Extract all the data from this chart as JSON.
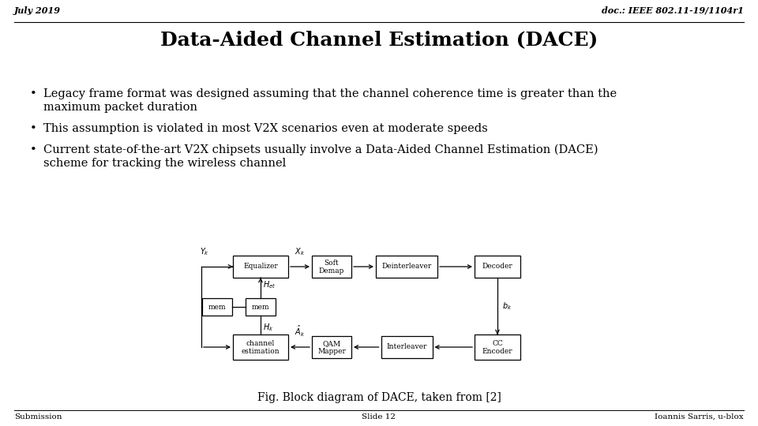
{
  "title": "Data-Aided Channel Estimation (DACE)",
  "header_left": "July 2019",
  "header_right": "doc.: IEEE 802.11-19/1104r1",
  "footer_left": "Submission",
  "footer_center": "Slide 12",
  "footer_right": "Ioannis Sarris, u-blox",
  "bullet1a": "Legacy frame format was designed assuming that the channel coherence time is greater than the",
  "bullet1b": "maximum packet duration",
  "bullet2": "This assumption is violated in most V2X scenarios even at moderate speeds",
  "bullet3a": "Current state-of-the-art V2X chipsets usually involve a Data-Aided Channel Estimation (DACE)",
  "bullet3b": "scheme for tracking the wireless channel",
  "fig_caption": "Fig. Block diagram of DACE, taken from [2]",
  "bg_color": "#ffffff",
  "text_color": "#000000"
}
